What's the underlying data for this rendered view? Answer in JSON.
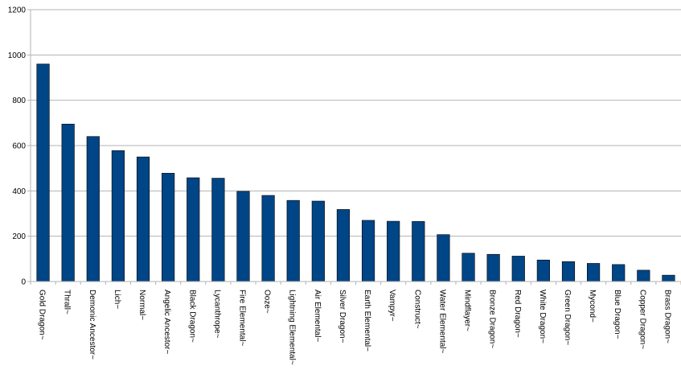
{
  "chart_data": {
    "type": "bar",
    "categories": [
      "Gold Dragon~",
      "Thrall~",
      "Demonic Ancestor~",
      "Lich~",
      "Normal~",
      "Angelic Ancestor~",
      "Black Dragon~",
      "Lycanthrope~",
      "Fire Elemental~",
      "Ooze~",
      "Lightning Elemental~",
      "Air Elemental~",
      "Silver Dragon~",
      "Earth Elemental~",
      "Vampyr~",
      "Construct~",
      "Water Elemental~",
      "Mindflayer~",
      "Bronze Dragon~",
      "Red Dragon~",
      "White Dragon~",
      "Green Dragon~",
      "Mycond~",
      "Blue Dragon~",
      "Copper Dragon~",
      "Brass Dragon~"
    ],
    "values": [
      960,
      695,
      640,
      578,
      550,
      478,
      458,
      456,
      398,
      380,
      358,
      355,
      318,
      270,
      266,
      265,
      207,
      125,
      120,
      112,
      95,
      88,
      80,
      75,
      50,
      28
    ],
    "ylim": [
      0,
      1200
    ],
    "yticks": [
      "0",
      "200",
      "400",
      "600",
      "800",
      "1000",
      "1200"
    ],
    "grid": true,
    "bar_color": "#004586",
    "title": "",
    "xlabel": "",
    "ylabel": ""
  }
}
